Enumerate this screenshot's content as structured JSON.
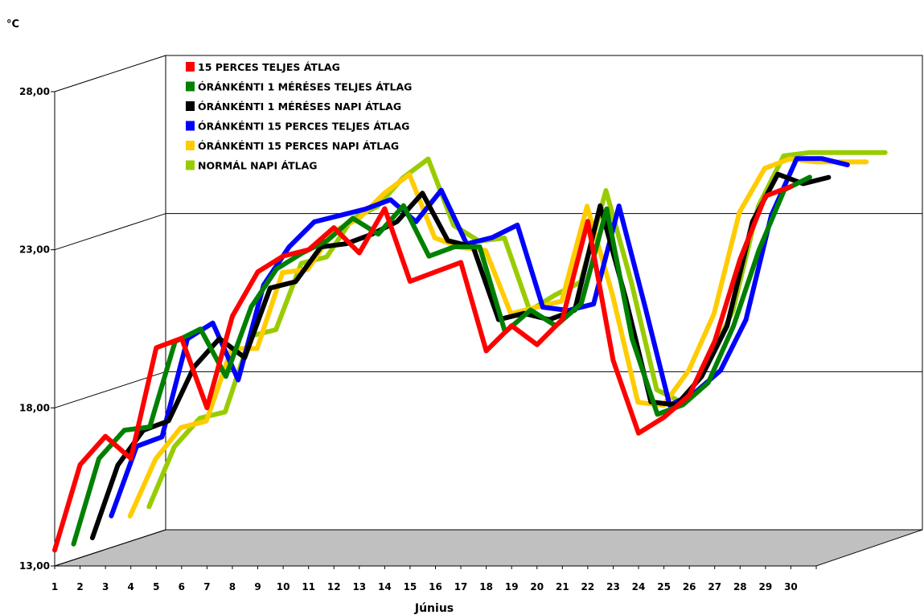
{
  "chart_data": {
    "type": "line",
    "title": "",
    "unit_label": "°C",
    "xlabel": "Június",
    "ylabel": "",
    "ylim": [
      13,
      28
    ],
    "yticks": [
      13,
      18,
      23,
      28
    ],
    "ytick_labels": [
      "13,00",
      "18,00",
      "23,00",
      "28,00"
    ],
    "x": [
      1,
      2,
      3,
      4,
      5,
      6,
      7,
      8,
      9,
      10,
      11,
      12,
      13,
      14,
      15,
      16,
      17,
      18,
      19,
      20,
      21,
      22,
      23,
      24,
      25,
      26,
      27,
      28,
      29,
      30
    ],
    "x_labels": [
      "1",
      "2",
      "3",
      "4",
      "5",
      "6",
      "7",
      "8",
      "9",
      "10",
      "11",
      "12",
      "13",
      "14",
      "15",
      "16",
      "17",
      "18",
      "19",
      "20",
      "21",
      "22",
      "23",
      "24",
      "25",
      "26",
      "27",
      "28",
      "29",
      "30"
    ],
    "three_d": true,
    "grid": "horizontal",
    "legend_position": "top-left",
    "series": [
      {
        "name": "15 PERCES TELJES ÁTLAG",
        "color": "#ff0000",
        "values": [
          13.5,
          16.2,
          17.1,
          16.4,
          19.9,
          20.2,
          18.0,
          20.9,
          22.3,
          22.8,
          23.0,
          23.7,
          22.9,
          24.3,
          22.0,
          22.3,
          22.6,
          19.8,
          20.6,
          20.0,
          20.8,
          23.9,
          19.5,
          17.2,
          17.7,
          18.4,
          20.1,
          22.7,
          24.7,
          25.0
        ]
      },
      {
        "name": "ÓRÁNKÉNTI 1 MÉRÉSES TELJES ÁTLAG",
        "color": "#008000",
        "values": [
          13.5,
          16.2,
          17.1,
          17.2,
          19.9,
          20.3,
          18.8,
          21.0,
          22.2,
          22.7,
          23.1,
          23.8,
          23.3,
          24.2,
          22.6,
          22.9,
          22.9,
          20.2,
          20.9,
          20.4,
          21.1,
          24.1,
          20.0,
          17.6,
          17.9,
          18.6,
          20.4,
          22.8,
          24.7,
          25.1
        ]
      },
      {
        "name": "ÓRÁNKÉNTI 1 MÉRÉSES NAPI ÁTLAG",
        "color": "#000000",
        "values": [
          13.5,
          15.8,
          16.9,
          17.2,
          18.9,
          19.8,
          19.2,
          21.4,
          21.6,
          22.7,
          22.8,
          23.1,
          23.5,
          24.4,
          22.9,
          22.7,
          20.4,
          20.6,
          20.4,
          20.7,
          24.0,
          21.1,
          17.8,
          17.7,
          18.6,
          20.2,
          23.5,
          25.0,
          24.7,
          24.9
        ]
      },
      {
        "name": "ÓRÁNKÉNTI 15 PERCES TELJES ÁTLAG",
        "color": "#0000ff",
        "values": [
          14.0,
          16.2,
          16.5,
          19.6,
          20.1,
          18.3,
          21.3,
          22.5,
          23.3,
          23.5,
          23.7,
          24.0,
          23.3,
          24.3,
          22.6,
          22.8,
          23.2,
          20.6,
          20.5,
          20.7,
          23.8,
          20.7,
          17.5,
          17.9,
          18.6,
          20.2,
          23.5,
          25.3,
          25.3,
          25.1
        ]
      },
      {
        "name": "ÓRÁNKÉNTI 15 PERCES NAPI ÁTLAG",
        "color": "#ffcc00",
        "values": [
          13.8,
          15.6,
          16.6,
          16.8,
          19.1,
          19.1,
          21.5,
          21.6,
          22.8,
          23.2,
          24.0,
          24.6,
          22.6,
          22.3,
          22.2,
          20.2,
          20.4,
          20.6,
          23.6,
          20.8,
          17.4,
          17.3,
          18.4,
          20.2,
          23.4,
          24.8,
          25.1,
          25.0,
          25.0,
          25.0
        ]
      },
      {
        "name": "NORMÁL NAPI ÁTLAG",
        "color": "#99cc00",
        "values": [
          13.9,
          15.8,
          16.7,
          16.9,
          19.3,
          19.5,
          21.6,
          21.8,
          23.0,
          23.4,
          24.3,
          24.9,
          22.8,
          22.3,
          22.4,
          20.1,
          20.6,
          21.0,
          23.9,
          21.0,
          17.6,
          17.2,
          18.4,
          20.1,
          23.4,
          25.0,
          25.1,
          25.1,
          25.1,
          25.1
        ]
      }
    ]
  }
}
